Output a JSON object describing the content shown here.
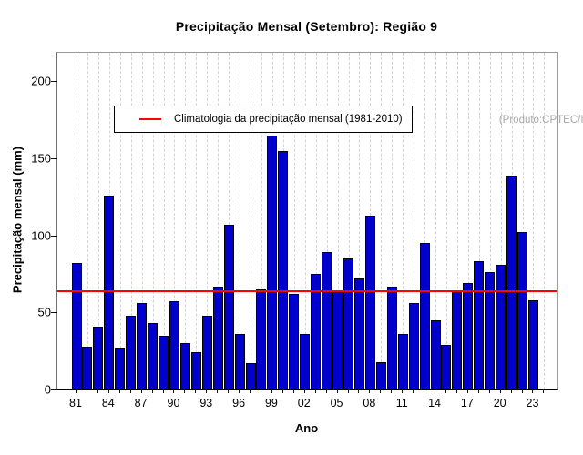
{
  "title": "Precipitação Mensal (Setembro): Região 9",
  "annotation": "(Produto:CPTEC/INPE)",
  "legend": {
    "label": "Climatologia da precipitação mensal (1981-2010)",
    "line_color": "#ff0000"
  },
  "chart_data": {
    "type": "bar",
    "title": "Precipitação Mensal (Setembro): Região 9",
    "xlabel": "Ano",
    "ylabel": "Precipitação mensal (mm)",
    "bar_color": "#0000cc",
    "bar_border_color": "#000000",
    "grid": "vertical-dashed",
    "legend_position": "top-left",
    "ylim": [
      0,
      218.5
    ],
    "y_ticks": [
      0,
      50,
      100,
      150,
      200
    ],
    "x_tick_labels": [
      "81",
      "84",
      "87",
      "90",
      "93",
      "96",
      "99",
      "02",
      "05",
      "08",
      "11",
      "14",
      "17",
      "20",
      "23"
    ],
    "years": [
      1981,
      1982,
      1983,
      1984,
      1985,
      1986,
      1987,
      1988,
      1989,
      1990,
      1991,
      1992,
      1993,
      1994,
      1995,
      1996,
      1997,
      1998,
      1999,
      2000,
      2001,
      2002,
      2003,
      2004,
      2005,
      2006,
      2007,
      2008,
      2009,
      2010,
      2011,
      2012,
      2013,
      2014,
      2015,
      2016,
      2017,
      2018,
      2019,
      2020,
      2021,
      2022,
      2023
    ],
    "values": [
      82,
      28,
      41,
      126,
      27,
      48,
      56,
      43,
      35,
      57,
      30,
      24,
      48,
      67,
      107,
      36,
      17,
      65,
      165,
      155,
      62,
      36,
      75,
      89,
      63,
      85,
      72,
      113,
      18,
      67,
      36,
      56,
      95,
      45,
      29,
      64,
      69,
      83,
      76,
      81,
      139,
      102,
      58
    ],
    "climatology": {
      "value": 64.6,
      "period": "1981-2010",
      "color": "#ff0000"
    },
    "x_axis_extra_tick_year": 2024
  }
}
